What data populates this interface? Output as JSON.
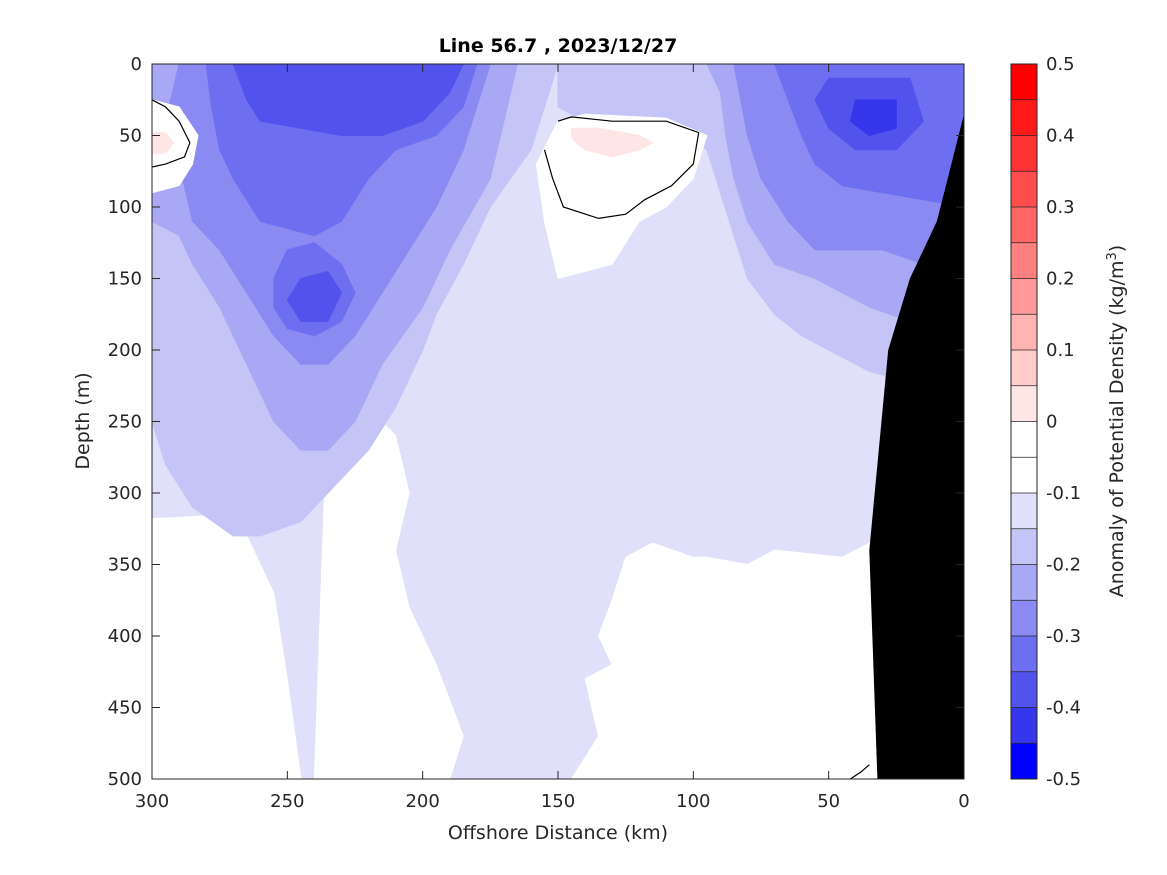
{
  "chart_data": {
    "type": "heatmap",
    "title": "Line 56.7 , 2023/12/27",
    "xlabel": "Offshore Distance (km)",
    "ylabel": "Depth (m)",
    "colorbar_label_main": "Anomaly of Potential Density (kg/m",
    "colorbar_label_sup": "3",
    "colorbar_label_end": ")",
    "xlim": [
      300,
      0
    ],
    "ylim": [
      0,
      500
    ],
    "x_ticks": [
      300,
      250,
      200,
      150,
      100,
      50,
      0
    ],
    "y_ticks": [
      0,
      50,
      100,
      150,
      200,
      250,
      300,
      350,
      400,
      450,
      500
    ],
    "colorbar_range": [
      -0.5,
      0.5
    ],
    "colorbar_ticks": [
      0.5,
      0.4,
      0.3,
      0.2,
      0.1,
      0,
      -0.1,
      -0.2,
      -0.3,
      -0.4,
      -0.5
    ],
    "colorbar_levels": [
      {
        "from": 0.45,
        "to": 0.5,
        "color": "#ff0000"
      },
      {
        "from": 0.4,
        "to": 0.45,
        "color": "#ff1a1a"
      },
      {
        "from": 0.35,
        "to": 0.4,
        "color": "#ff3333"
      },
      {
        "from": 0.3,
        "to": 0.35,
        "color": "#ff4d4d"
      },
      {
        "from": 0.25,
        "to": 0.3,
        "color": "#ff6666"
      },
      {
        "from": 0.2,
        "to": 0.25,
        "color": "#ff8080"
      },
      {
        "from": 0.15,
        "to": 0.2,
        "color": "#ff9999"
      },
      {
        "from": 0.1,
        "to": 0.15,
        "color": "#ffb3b3"
      },
      {
        "from": 0.05,
        "to": 0.1,
        "color": "#ffcccc"
      },
      {
        "from": 0.0,
        "to": 0.05,
        "color": "#ffe6e6"
      },
      {
        "from": -0.05,
        "to": 0.0,
        "color": "#ffffff"
      },
      {
        "from": -0.1,
        "to": -0.05,
        "color": "#ffffff"
      },
      {
        "from": -0.15,
        "to": -0.1,
        "color": "#e0e0fa"
      },
      {
        "from": -0.2,
        "to": -0.15,
        "color": "#c4c4f7"
      },
      {
        "from": -0.25,
        "to": -0.2,
        "color": "#a8a8f5"
      },
      {
        "from": -0.3,
        "to": -0.25,
        "color": "#8a8af2"
      },
      {
        "from": -0.35,
        "to": -0.3,
        "color": "#6e6ef0"
      },
      {
        "from": -0.4,
        "to": -0.35,
        "color": "#5252ed"
      },
      {
        "from": -0.45,
        "to": -0.4,
        "color": "#3636eb"
      },
      {
        "from": -0.5,
        "to": -0.45,
        "color": "#0000ff"
      }
    ],
    "field_regions": [
      {
        "level": -0.1,
        "color": "#e0e0fa",
        "outline": [
          [
            300,
            0
          ],
          [
            0,
            0
          ],
          [
            0,
            340
          ],
          [
            30,
            330
          ],
          [
            45,
            345
          ],
          [
            70,
            340
          ],
          [
            80,
            350
          ],
          [
            95,
            345
          ],
          [
            100,
            345
          ],
          [
            115,
            335
          ],
          [
            125,
            345
          ],
          [
            130,
            375
          ],
          [
            135,
            400
          ],
          [
            130,
            420
          ],
          [
            140,
            430
          ],
          [
            135,
            470
          ],
          [
            145,
            500
          ],
          [
            190,
            500
          ],
          [
            185,
            470
          ],
          [
            195,
            420
          ],
          [
            205,
            380
          ],
          [
            210,
            340
          ],
          [
            205,
            300
          ],
          [
            210,
            260
          ],
          [
            220,
            240
          ],
          [
            235,
            230
          ],
          [
            250,
            250
          ],
          [
            270,
            280
          ],
          [
            290,
            315
          ],
          [
            300,
            320
          ]
        ]
      },
      {
        "level": -0.05,
        "color": "#ffffff",
        "outline": [
          [
            235,
            230
          ],
          [
            220,
            240
          ],
          [
            210,
            260
          ],
          [
            205,
            300
          ],
          [
            210,
            340
          ],
          [
            205,
            380
          ],
          [
            195,
            420
          ],
          [
            185,
            470
          ],
          [
            190,
            500
          ],
          [
            245,
            500
          ],
          [
            250,
            430
          ],
          [
            255,
            370
          ],
          [
            265,
            330
          ],
          [
            280,
            316
          ],
          [
            300,
            318
          ],
          [
            300,
            340
          ],
          [
            300,
            500
          ],
          [
            240,
            500
          ]
        ]
      },
      {
        "level": -0.05,
        "color": "#ffffff",
        "outline": [
          [
            145,
            500
          ],
          [
            135,
            470
          ],
          [
            140,
            430
          ],
          [
            130,
            420
          ],
          [
            135,
            400
          ],
          [
            130,
            375
          ],
          [
            125,
            345
          ],
          [
            115,
            335
          ],
          [
            100,
            345
          ],
          [
            95,
            345
          ],
          [
            80,
            350
          ],
          [
            70,
            340
          ],
          [
            45,
            345
          ],
          [
            30,
            330
          ],
          [
            30,
            500
          ]
        ]
      },
      {
        "level": -0.15,
        "color": "#c4c4f7",
        "outline": [
          [
            300,
            0
          ],
          [
            150,
            0
          ],
          [
            155,
            30
          ],
          [
            160,
            60
          ],
          [
            175,
            100
          ],
          [
            185,
            140
          ],
          [
            195,
            175
          ],
          [
            200,
            200
          ],
          [
            210,
            240
          ],
          [
            220,
            270
          ],
          [
            235,
            300
          ],
          [
            245,
            320
          ],
          [
            260,
            330
          ],
          [
            270,
            330
          ],
          [
            285,
            310
          ],
          [
            295,
            280
          ],
          [
            300,
            250
          ]
        ]
      },
      {
        "level": -0.15,
        "color": "#c4c4f7",
        "outline": [
          [
            150,
            0
          ],
          [
            0,
            0
          ],
          [
            0,
            250
          ],
          [
            15,
            240
          ],
          [
            25,
            220
          ],
          [
            35,
            215
          ],
          [
            50,
            200
          ],
          [
            60,
            190
          ],
          [
            70,
            175
          ],
          [
            80,
            150
          ],
          [
            85,
            120
          ],
          [
            90,
            90
          ],
          [
            95,
            60
          ],
          [
            110,
            40
          ],
          [
            140,
            40
          ],
          [
            150,
            30
          ]
        ]
      },
      {
        "level": -0.2,
        "color": "#a8a8f5",
        "outline": [
          [
            300,
            0
          ],
          [
            165,
            0
          ],
          [
            170,
            40
          ],
          [
            175,
            80
          ],
          [
            190,
            130
          ],
          [
            200,
            170
          ],
          [
            215,
            210
          ],
          [
            225,
            250
          ],
          [
            235,
            270
          ],
          [
            245,
            270
          ],
          [
            255,
            250
          ],
          [
            265,
            210
          ],
          [
            275,
            170
          ],
          [
            285,
            140
          ],
          [
            290,
            120
          ],
          [
            300,
            110
          ]
        ]
      },
      {
        "level": -0.2,
        "color": "#a8a8f5",
        "outline": [
          [
            95,
            0
          ],
          [
            0,
            0
          ],
          [
            0,
            200
          ],
          [
            20,
            180
          ],
          [
            35,
            170
          ],
          [
            45,
            160
          ],
          [
            55,
            150
          ],
          [
            70,
            140
          ],
          [
            80,
            110
          ],
          [
            85,
            80
          ],
          [
            88,
            50
          ],
          [
            90,
            20
          ]
        ]
      },
      {
        "level": -0.25,
        "color": "#8a8af2",
        "outline": [
          [
            290,
            0
          ],
          [
            175,
            0
          ],
          [
            180,
            30
          ],
          [
            185,
            60
          ],
          [
            195,
            100
          ],
          [
            205,
            130
          ],
          [
            215,
            160
          ],
          [
            225,
            190
          ],
          [
            235,
            210
          ],
          [
            245,
            210
          ],
          [
            255,
            190
          ],
          [
            265,
            160
          ],
          [
            275,
            130
          ],
          [
            285,
            110
          ],
          [
            290,
            70
          ],
          [
            295,
            40
          ]
        ]
      },
      {
        "level": -0.25,
        "color": "#8a8af2",
        "outline": [
          [
            85,
            0
          ],
          [
            0,
            0
          ],
          [
            0,
            150
          ],
          [
            15,
            140
          ],
          [
            30,
            130
          ],
          [
            40,
            130
          ],
          [
            55,
            130
          ],
          [
            65,
            110
          ],
          [
            75,
            80
          ],
          [
            80,
            50
          ],
          [
            83,
            20
          ]
        ]
      },
      {
        "level": -0.3,
        "color": "#6e6ef0",
        "outline": [
          [
            280,
            0
          ],
          [
            180,
            0
          ],
          [
            185,
            30
          ],
          [
            195,
            50
          ],
          [
            210,
            60
          ],
          [
            220,
            80
          ],
          [
            230,
            110
          ],
          [
            240,
            120
          ],
          [
            250,
            115
          ],
          [
            260,
            110
          ],
          [
            265,
            95
          ],
          [
            270,
            80
          ],
          [
            275,
            60
          ],
          [
            278,
            30
          ]
        ]
      },
      {
        "level": -0.3,
        "color": "#6e6ef0",
        "outline": [
          [
            250,
            130
          ],
          [
            240,
            125
          ],
          [
            230,
            140
          ],
          [
            225,
            160
          ],
          [
            230,
            180
          ],
          [
            240,
            190
          ],
          [
            250,
            185
          ],
          [
            255,
            170
          ],
          [
            255,
            150
          ]
        ]
      },
      {
        "level": -0.3,
        "color": "#6e6ef0",
        "outline": [
          [
            70,
            0
          ],
          [
            0,
            0
          ],
          [
            0,
            100
          ],
          [
            15,
            95
          ],
          [
            30,
            90
          ],
          [
            45,
            85
          ],
          [
            55,
            70
          ],
          [
            60,
            50
          ],
          [
            65,
            25
          ]
        ]
      },
      {
        "level": -0.35,
        "color": "#5252ed",
        "outline": [
          [
            270,
            0
          ],
          [
            185,
            0
          ],
          [
            190,
            20
          ],
          [
            200,
            40
          ],
          [
            215,
            50
          ],
          [
            230,
            50
          ],
          [
            245,
            45
          ],
          [
            260,
            40
          ],
          [
            265,
            25
          ]
        ]
      },
      {
        "level": -0.35,
        "color": "#5252ed",
        "outline": [
          [
            245,
            150
          ],
          [
            235,
            145
          ],
          [
            230,
            160
          ],
          [
            235,
            180
          ],
          [
            245,
            180
          ],
          [
            250,
            165
          ]
        ]
      },
      {
        "level": -0.35,
        "color": "#5252ed",
        "outline": [
          [
            50,
            10
          ],
          [
            20,
            10
          ],
          [
            15,
            40
          ],
          [
            25,
            60
          ],
          [
            40,
            60
          ],
          [
            50,
            45
          ],
          [
            55,
            25
          ]
        ]
      },
      {
        "level": -0.4,
        "color": "#3636eb",
        "outline": [
          [
            40,
            25
          ],
          [
            25,
            25
          ],
          [
            25,
            45
          ],
          [
            35,
            50
          ],
          [
            42,
            40
          ]
        ]
      },
      {
        "level": -0.05,
        "color": "#ffffff",
        "outline": [
          [
            150,
            40
          ],
          [
            140,
            35
          ],
          [
            110,
            38
          ],
          [
            95,
            50
          ],
          [
            100,
            80
          ],
          [
            110,
            100
          ],
          [
            120,
            110
          ],
          [
            130,
            140
          ],
          [
            150,
            150
          ],
          [
            155,
            110
          ],
          [
            158,
            70
          ]
        ]
      },
      {
        "level": -0.05,
        "color": "#ffffff",
        "outline": [
          [
            300,
            25
          ],
          [
            290,
            30
          ],
          [
            283,
            50
          ],
          [
            285,
            70
          ],
          [
            290,
            85
          ],
          [
            300,
            90
          ]
        ]
      },
      {
        "level": 0.05,
        "color": "#ffe6e6",
        "outline": [
          [
            145,
            45
          ],
          [
            135,
            45
          ],
          [
            120,
            50
          ],
          [
            115,
            55
          ],
          [
            120,
            60
          ],
          [
            130,
            65
          ],
          [
            140,
            60
          ],
          [
            145,
            52
          ]
        ]
      },
      {
        "level": 0.05,
        "color": "#ffe6e6",
        "outline": [
          [
            300,
            48
          ],
          [
            295,
            48
          ],
          [
            292,
            55
          ],
          [
            295,
            62
          ],
          [
            300,
            63
          ]
        ]
      }
    ],
    "zero_contours": [
      [
        [
          150,
          40
        ],
        [
          145,
          37
        ],
        [
          130,
          40
        ],
        [
          110,
          40
        ],
        [
          98,
          48
        ],
        [
          100,
          70
        ],
        [
          108,
          85
        ],
        [
          118,
          95
        ],
        [
          125,
          105
        ],
        [
          135,
          108
        ],
        [
          148,
          100
        ],
        [
          152,
          80
        ],
        [
          155,
          60
        ]
      ],
      [
        [
          300,
          25
        ],
        [
          295,
          30
        ],
        [
          290,
          40
        ],
        [
          286,
          55
        ],
        [
          288,
          65
        ],
        [
          295,
          70
        ],
        [
          300,
          72
        ]
      ],
      [
        [
          42,
          500
        ],
        [
          38,
          495
        ],
        [
          35,
          490
        ]
      ]
    ],
    "land_mask": [
      [
        32,
        500
      ],
      [
        35,
        340
      ],
      [
        28,
        200
      ],
      [
        20,
        150
      ],
      [
        10,
        110
      ],
      [
        2,
        50
      ],
      [
        0,
        35
      ],
      [
        0,
        500
      ]
    ]
  }
}
